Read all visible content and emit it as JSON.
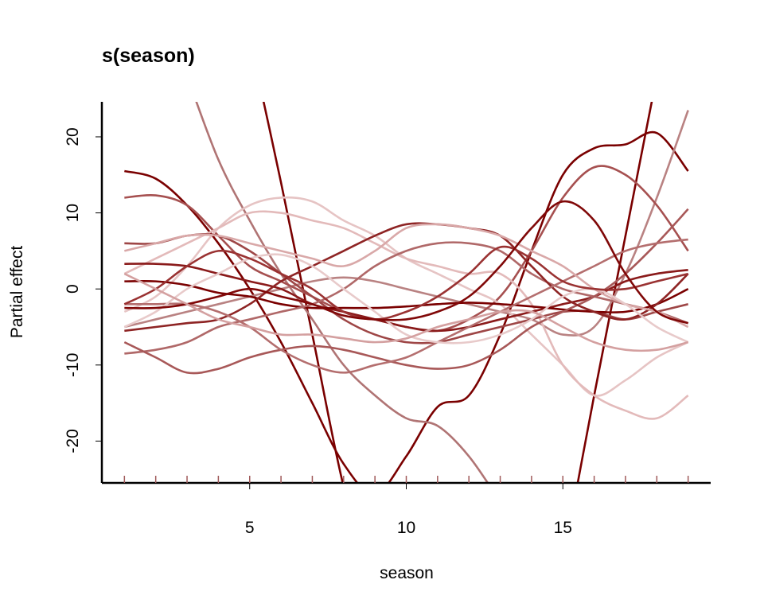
{
  "chart_data": {
    "type": "line",
    "title": "s(season)",
    "x_label": "season",
    "y_label": "Partial effect",
    "x": [
      1,
      2,
      3,
      4,
      5,
      6,
      7,
      8,
      9,
      10,
      11,
      12,
      13,
      14,
      15,
      16,
      17,
      18,
      19
    ],
    "xlim": [
      0.28,
      19.72
    ],
    "ylim": [
      -25.5,
      24.6
    ],
    "xticks": [
      5,
      10,
      15
    ],
    "yticks": [
      -20,
      -10,
      0,
      10,
      20
    ],
    "rug": [
      1,
      2,
      3,
      4,
      5,
      6,
      7,
      8,
      9,
      10,
      11,
      12,
      13,
      14,
      15,
      16,
      17,
      18,
      19
    ],
    "rug_color": "#a05a5a",
    "series": [
      {
        "color": "#7a0000",
        "values": [
          15.5,
          14.5,
          11,
          6,
          0,
          -7,
          -15,
          -23,
          -27,
          -22,
          -15.5,
          -14,
          -6,
          5,
          15,
          18.5,
          19,
          20.5,
          15.5
        ]
      },
      {
        "color": "#7a0000",
        "values": [
          null,
          null,
          null,
          null,
          33,
          14,
          -6,
          -26,
          -40,
          null,
          null,
          null,
          null,
          null,
          null,
          null,
          null,
          null,
          null
        ]
      },
      {
        "color": "#7a0000",
        "values": [
          null,
          null,
          null,
          null,
          null,
          null,
          null,
          null,
          null,
          null,
          null,
          null,
          null,
          null,
          -36,
          -14,
          7,
          28,
          null
        ]
      },
      {
        "color": "#b07474",
        "values": [
          null,
          null,
          28,
          17,
          9,
          2,
          -4,
          -10,
          -14,
          -17,
          -18,
          -22,
          -28,
          null,
          null,
          null,
          null,
          null,
          null
        ]
      },
      {
        "color": "#b98282",
        "values": [
          -5,
          -4,
          -3,
          -2,
          -1,
          0,
          1,
          1.5,
          1,
          0,
          -1,
          -2,
          -3,
          -4,
          -6,
          -5,
          2,
          12,
          23.5
        ]
      },
      {
        "color": "#a65050",
        "values": [
          12,
          12.3,
          11,
          7,
          3,
          1,
          -1,
          -3,
          -4,
          -5,
          -5.5,
          -4,
          -1,
          5,
          12,
          16,
          15,
          11,
          5
        ]
      },
      {
        "color": "#e6c4c4",
        "values": [
          -3,
          -1,
          3,
          8,
          11,
          12,
          11.5,
          9,
          7,
          4,
          2,
          0,
          -2,
          -6,
          -10,
          -14,
          -12,
          -9,
          -7
        ]
      },
      {
        "color": "#e3baba",
        "values": [
          2,
          4,
          6,
          8,
          10,
          10,
          9,
          8,
          6,
          4,
          3,
          2,
          2,
          -2,
          -10,
          -14,
          -16,
          -17,
          -14
        ]
      },
      {
        "color": "#9e4646",
        "values": [
          6,
          6,
          7,
          7,
          5,
          2,
          -1,
          -4,
          -6,
          -7,
          -7,
          -6,
          -5,
          -4,
          -3,
          -3,
          -4,
          -3,
          -2
        ]
      },
      {
        "color": "#8a1a1a",
        "values": [
          3.3,
          3.3,
          3,
          2,
          1,
          0,
          -2,
          -3,
          -4,
          -5,
          -5.5,
          -5,
          -4,
          -3,
          -2,
          -1,
          1,
          2,
          2.5
        ]
      },
      {
        "color": "#7a0000",
        "values": [
          1,
          1,
          0.5,
          -0.5,
          -1,
          -2,
          -2.5,
          -2.5,
          -2.5,
          -2.3,
          -2,
          -1.8,
          -2,
          -2.3,
          -2.7,
          -3,
          -3,
          -2,
          0
        ]
      },
      {
        "color": "#b06868",
        "values": [
          -8.5,
          -8,
          -7,
          -5,
          -4,
          -3,
          -2,
          0,
          3,
          5,
          6,
          6,
          5,
          2,
          0,
          -1,
          -2,
          -3,
          -4.5
        ]
      },
      {
        "color": "#a85858",
        "values": [
          -7,
          -9,
          -11,
          -10.5,
          -9,
          -8,
          -7.5,
          -8,
          -9,
          -10,
          -10.5,
          -10,
          -8,
          -5,
          -3,
          -1,
          2,
          6,
          10.5
        ]
      },
      {
        "color": "#8e2424",
        "values": [
          -5.5,
          -5,
          -4.5,
          -4,
          -2,
          1,
          3,
          5,
          7,
          8.5,
          8.5,
          8,
          7,
          3,
          -1,
          -3,
          -4,
          -2,
          2
        ]
      },
      {
        "color": "#b46e6e",
        "values": [
          -2,
          -2,
          -2,
          -3,
          -5,
          -8,
          -10,
          -11,
          -10,
          -9,
          -7,
          -5,
          -3,
          -1,
          1,
          3,
          5,
          6,
          6.5
        ]
      },
      {
        "color": "#d9a8a8",
        "values": [
          5,
          6,
          7,
          7,
          6,
          5,
          4,
          3,
          5,
          8,
          8.5,
          8,
          7,
          5,
          3,
          0,
          -2,
          -3,
          -5
        ]
      },
      {
        "color": "#e8caca",
        "values": [
          -5,
          -3,
          0,
          2,
          4,
          4.5,
          3,
          0,
          -3,
          -6,
          -7,
          -7,
          -6,
          -4,
          -1,
          0,
          -2,
          -5,
          -7
        ]
      },
      {
        "color": "#9a3232",
        "values": [
          -2,
          0,
          3,
          5,
          4,
          2,
          0,
          -3,
          -4,
          -3,
          -1,
          2,
          5.5,
          4,
          1,
          0,
          0,
          1,
          2
        ]
      },
      {
        "color": "#800808",
        "values": [
          -2.5,
          -2.5,
          -2,
          -1,
          0,
          -1,
          -2,
          -3.5,
          -4,
          -4,
          -3,
          -1,
          3,
          8,
          11.5,
          9,
          2,
          -3,
          -4.5
        ]
      },
      {
        "color": "#d4a0a0",
        "values": [
          2,
          0,
          -2,
          -4,
          -5,
          -6,
          -6,
          -6.5,
          -7,
          -6.5,
          -5,
          -4,
          -3,
          -3,
          -5,
          -7,
          -8,
          -8,
          -7
        ]
      }
    ]
  }
}
